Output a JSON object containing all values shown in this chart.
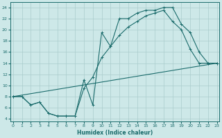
{
  "xlabel": "Humidex (Indice chaleur)",
  "ylabel": "",
  "bg_color": "#cde8e8",
  "grid_color": "#aacccc",
  "line_color": "#1a6b6b",
  "line1_x": [
    0,
    1,
    2,
    3,
    4,
    5,
    6,
    7,
    8,
    9,
    10,
    11,
    12,
    13,
    14,
    15,
    16,
    17,
    18,
    19,
    20,
    21,
    22,
    23
  ],
  "line1_y": [
    8.0,
    8.0,
    6.5,
    7.0,
    5.0,
    4.5,
    4.5,
    4.5,
    11.0,
    6.5,
    19.5,
    17.0,
    22.0,
    22.0,
    23.0,
    23.5,
    23.5,
    24.0,
    24.0,
    21.0,
    19.5,
    16.0,
    14.0,
    14.0
  ],
  "line2_x": [
    0,
    23
  ],
  "line2_y": [
    8.0,
    14.0
  ],
  "line3_x": [
    0,
    1,
    2,
    3,
    4,
    5,
    6,
    7,
    8,
    9,
    10,
    11,
    12,
    13,
    14,
    15,
    16,
    17,
    18,
    19,
    20,
    21,
    22,
    23
  ],
  "line3_y": [
    8.0,
    8.0,
    6.5,
    7.0,
    5.0,
    4.5,
    4.5,
    4.5,
    9.5,
    11.5,
    15.0,
    17.0,
    19.0,
    20.5,
    21.5,
    22.5,
    23.0,
    23.5,
    21.5,
    20.0,
    16.5,
    14.0,
    14.0,
    14.0
  ],
  "xlim": [
    -0.3,
    23.3
  ],
  "ylim": [
    3.5,
    25
  ],
  "yticks": [
    4,
    6,
    8,
    10,
    12,
    14,
    16,
    18,
    20,
    22,
    24
  ],
  "xticks": [
    0,
    1,
    2,
    3,
    4,
    5,
    6,
    7,
    8,
    9,
    10,
    11,
    12,
    13,
    14,
    15,
    16,
    17,
    18,
    19,
    20,
    21,
    22,
    23
  ],
  "xtick_labels": [
    "0",
    "1",
    "2",
    "3",
    "4",
    "5",
    "6",
    "7",
    "8",
    "9",
    "10",
    "11",
    "12",
    "13",
    "14",
    "15",
    "16",
    "17",
    "18",
    "19",
    "20",
    "21",
    "22",
    "23"
  ],
  "figsize": [
    3.2,
    2.0
  ],
  "dpi": 100
}
